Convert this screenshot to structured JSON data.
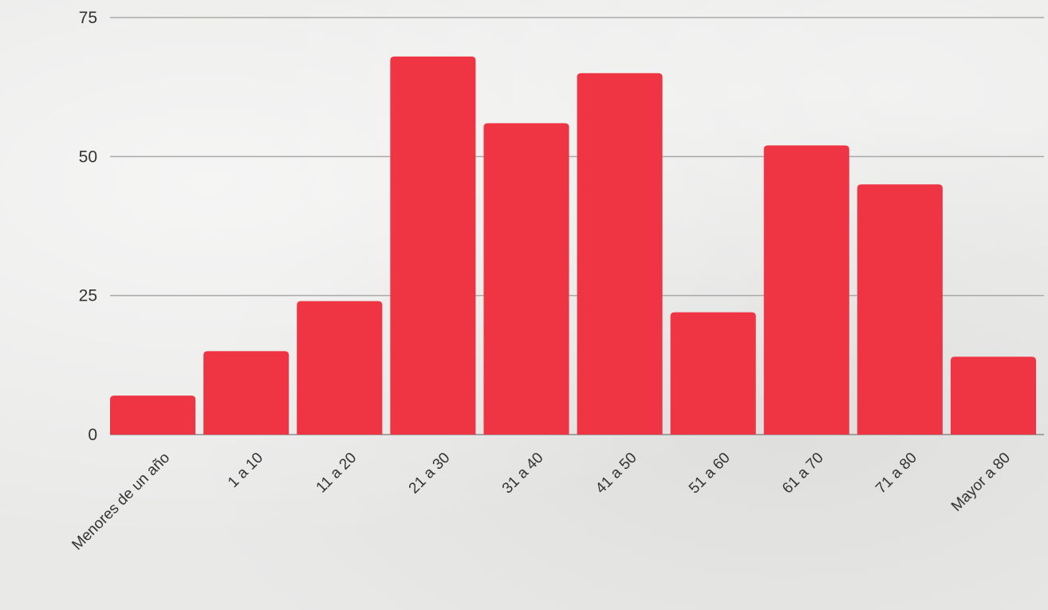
{
  "chart_data": {
    "type": "bar",
    "categories": [
      "Menores de un año",
      "1 a 10",
      "11 a 20",
      "21 a 30",
      "31 a 40",
      "41 a 50",
      "51 a 60",
      "61 a 70",
      "71 a 80",
      "Mayor a 80"
    ],
    "values": [
      7,
      15,
      24,
      68,
      56,
      65,
      22,
      52,
      45,
      14
    ],
    "title": "",
    "xlabel": "",
    "ylabel": "",
    "ylim": [
      0,
      75
    ],
    "yticks": [
      0,
      25,
      50,
      75
    ],
    "grid": true,
    "legend": "none",
    "bar_color": "#ef3444"
  }
}
